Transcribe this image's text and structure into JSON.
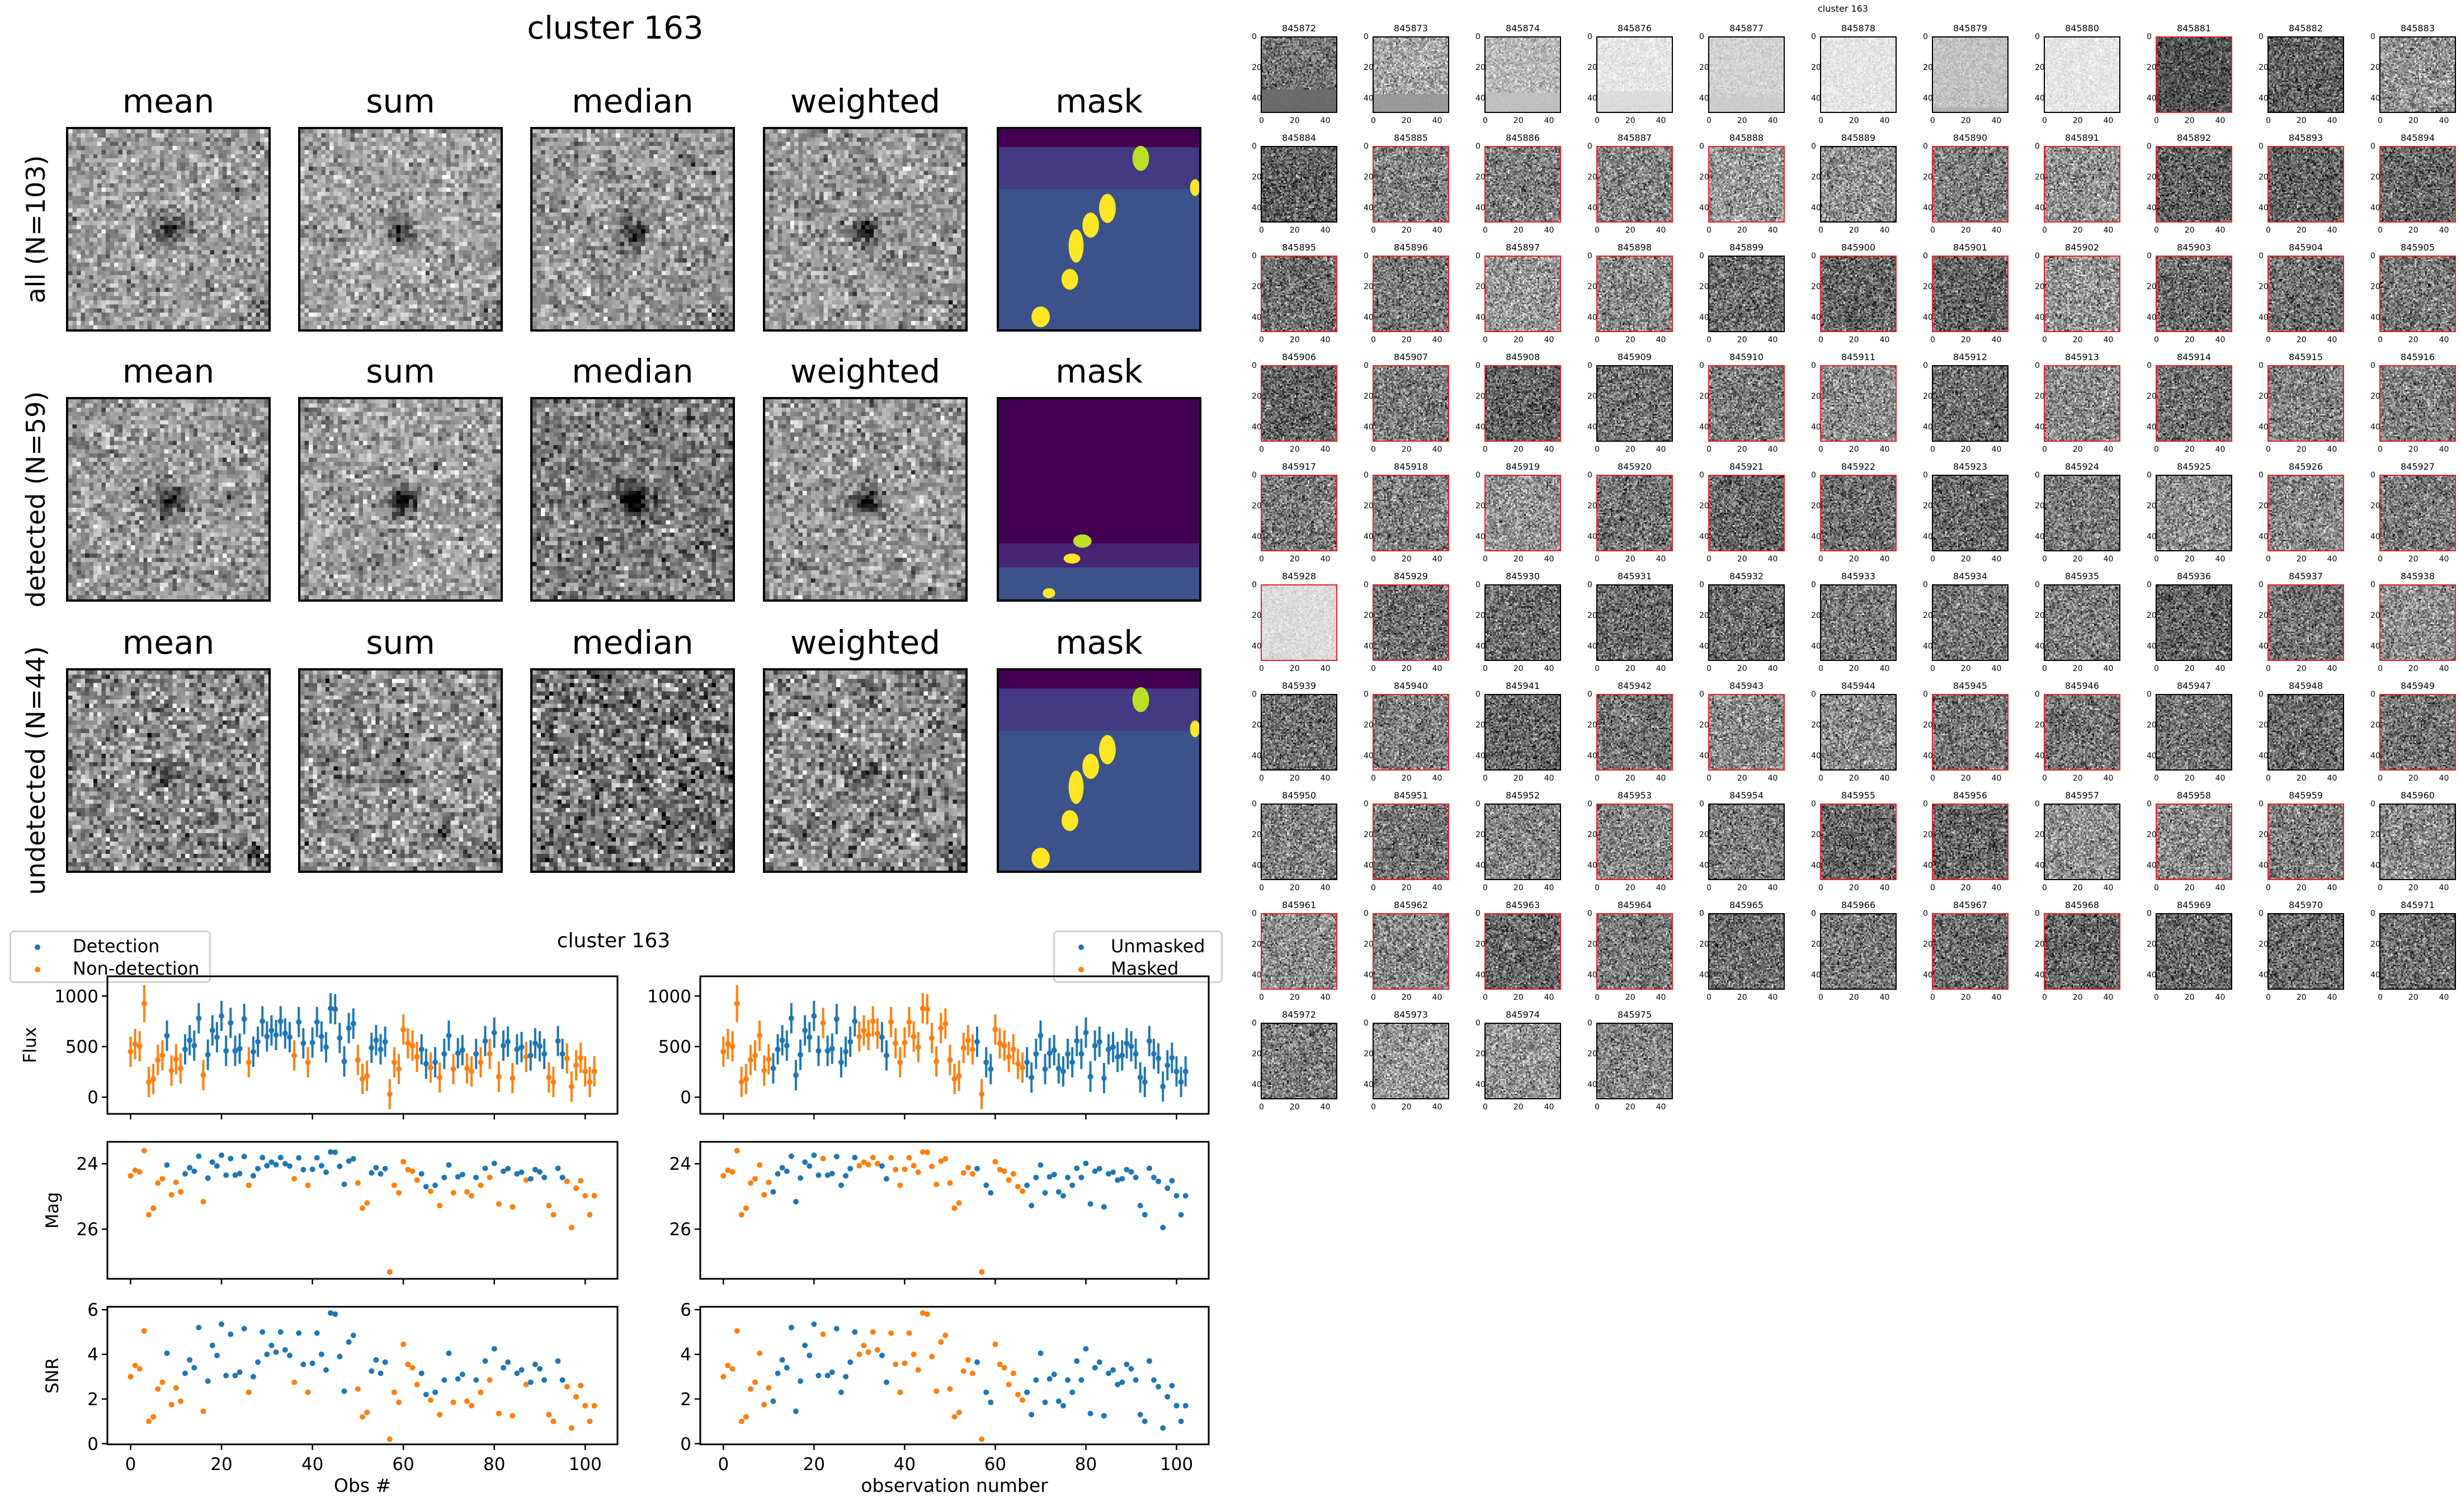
{
  "figure_title": "cluster 163",
  "stack_panels": {
    "columns": [
      "mean",
      "sum",
      "median",
      "weighted",
      "mask"
    ],
    "rows": [
      "all (N=103)",
      "detected (N=59)",
      "undetected (N=44)"
    ]
  },
  "colors": {
    "detection": "#1f77b4",
    "non_detection": "#ff7f0e",
    "detected_border": "#e8202a",
    "viridis_dark": "#440154",
    "viridis_purple": "#443983",
    "viridis_blue": "#3b528b",
    "viridis_yellow": "#fde725",
    "viridis_lime": "#bddf26"
  },
  "thumbnail_grid": {
    "title": "cluster 163",
    "ticks": [
      "0",
      "20",
      "40"
    ],
    "ids": [
      "845872",
      "845873",
      "845874",
      "845876",
      "845877",
      "845878",
      "845879",
      "845880",
      "845881",
      "845882",
      "845883",
      "845884",
      "845885",
      "845886",
      "845887",
      "845888",
      "845889",
      "845890",
      "845891",
      "845892",
      "845893",
      "845894",
      "845895",
      "845896",
      "845897",
      "845898",
      "845899",
      "845900",
      "845901",
      "845902",
      "845903",
      "845904",
      "845905",
      "845906",
      "845907",
      "845908",
      "845909",
      "845910",
      "845911",
      "845912",
      "845913",
      "845914",
      "845915",
      "845916",
      "845917",
      "845918",
      "845919",
      "845920",
      "845921",
      "845922",
      "845923",
      "845924",
      "845925",
      "845926",
      "845927",
      "845928",
      "845929",
      "845930",
      "845931",
      "845932",
      "845933",
      "845934",
      "845935",
      "845936",
      "845937",
      "845938",
      "845939",
      "845940",
      "845941",
      "845942",
      "845943",
      "845944",
      "845945",
      "845946",
      "845947",
      "845948",
      "845949",
      "845950",
      "845951",
      "845952",
      "845953",
      "845954",
      "845955",
      "845956",
      "845957",
      "845958",
      "845959",
      "845960",
      "845961",
      "845962",
      "845963",
      "845964",
      "845965",
      "845966",
      "845967",
      "845968",
      "845969",
      "845970",
      "845971",
      "845972",
      "845973",
      "845974",
      "845975"
    ]
  },
  "chart_data": {
    "type": "scatter",
    "title": "cluster 163",
    "observations": {
      "count": 103,
      "flux": [
        450,
        525,
        503,
        925,
        150,
        180,
        368,
        413,
        608,
        263,
        375,
        285,
        473,
        563,
        510,
        780,
        218,
        420,
        660,
        593,
        803,
        458,
        735,
        458,
        480,
        773,
        345,
        450,
        548,
        750,
        600,
        660,
        615,
        750,
        630,
        593,
        413,
        743,
        533,
        345,
        540,
        743,
        600,
        495,
        878,
        870,
        585,
        353,
        683,
        728,
        368,
        180,
        210,
        488,
        563,
        473,
        548,
        30,
        345,
        278,
        668,
        533,
        510,
        398,
        473,
        330,
        293,
        345,
        195,
        428,
        608,
        278,
        435,
        465,
        285,
        255,
        428,
        345,
        555,
        428,
        638,
        203,
        510,
        548,
        188,
        473,
        495,
        398,
        413,
        533,
        503,
        428,
        195,
        150,
        555,
        428,
        383,
        105,
        315,
        390,
        255,
        150,
        255
      ],
      "flux_err": [
        150,
        150,
        150,
        183,
        150,
        150,
        150,
        150,
        150,
        150,
        150,
        150,
        150,
        150,
        150,
        150,
        150,
        150,
        150,
        150,
        150,
        150,
        150,
        150,
        150,
        150,
        150,
        150,
        150,
        150,
        150,
        150,
        150,
        150,
        150,
        150,
        150,
        150,
        150,
        150,
        150,
        150,
        150,
        150,
        150,
        150,
        150,
        150,
        150,
        150,
        150,
        150,
        150,
        150,
        150,
        150,
        150,
        150,
        150,
        150,
        150,
        150,
        150,
        150,
        150,
        150,
        150,
        150,
        150,
        150,
        150,
        150,
        150,
        150,
        150,
        150,
        150,
        150,
        150,
        150,
        150,
        150,
        150,
        150,
        150,
        150,
        150,
        150,
        150,
        150,
        150,
        150,
        150,
        150,
        150,
        150,
        150,
        150,
        150,
        150,
        150,
        150,
        150
      ],
      "mag": [
        24.37,
        24.2,
        24.25,
        23.6,
        25.56,
        25.36,
        24.59,
        24.46,
        24.04,
        24.95,
        24.57,
        24.86,
        24.31,
        24.12,
        24.23,
        23.77,
        25.16,
        24.44,
        23.95,
        24.07,
        23.74,
        24.35,
        23.84,
        24.35,
        24.3,
        23.78,
        24.66,
        24.37,
        24.15,
        23.81,
        24.06,
        23.95,
        24.03,
        23.81,
        24.0,
        24.07,
        24.46,
        23.82,
        24.18,
        24.66,
        24.17,
        23.82,
        24.06,
        24.26,
        23.64,
        23.65,
        24.08,
        24.63,
        23.92,
        23.85,
        24.59,
        25.36,
        25.2,
        24.28,
        24.12,
        24.31,
        24.15,
        27.31,
        24.66,
        24.89,
        23.94,
        24.18,
        24.23,
        24.5,
        24.31,
        24.7,
        24.84,
        24.66,
        25.28,
        24.42,
        24.04,
        24.89,
        24.4,
        24.33,
        24.86,
        24.98,
        24.42,
        24.66,
        24.14,
        24.42,
        23.99,
        25.23,
        24.23,
        24.15,
        25.32,
        24.31,
        24.26,
        24.5,
        24.46,
        24.18,
        24.25,
        24.42,
        25.28,
        25.56,
        24.14,
        24.42,
        24.54,
        25.95,
        24.75,
        24.52,
        24.98,
        25.56,
        24.98
      ],
      "snr": [
        3.0,
        3.5,
        3.35,
        5.05,
        1.0,
        1.2,
        2.45,
        2.75,
        4.05,
        1.75,
        2.5,
        1.9,
        3.15,
        3.75,
        3.4,
        5.2,
        1.45,
        2.8,
        4.4,
        3.95,
        5.35,
        3.05,
        4.9,
        3.05,
        3.2,
        5.15,
        2.3,
        3.0,
        3.65,
        5.0,
        4.0,
        4.4,
        4.1,
        5.0,
        4.2,
        3.95,
        2.75,
        4.95,
        3.55,
        2.3,
        3.6,
        4.95,
        4.0,
        3.3,
        5.85,
        5.8,
        3.9,
        2.35,
        4.55,
        4.85,
        2.45,
        1.2,
        1.4,
        3.25,
        3.75,
        3.15,
        3.65,
        0.2,
        2.3,
        1.85,
        4.45,
        3.55,
        3.4,
        2.65,
        3.15,
        2.2,
        1.95,
        2.3,
        1.3,
        2.85,
        4.05,
        1.85,
        2.9,
        3.1,
        1.9,
        1.7,
        2.85,
        2.3,
        3.7,
        2.85,
        4.25,
        1.35,
        3.4,
        3.65,
        1.25,
        3.15,
        3.3,
        2.65,
        2.75,
        3.55,
        3.35,
        2.85,
        1.3,
        1.0,
        3.7,
        2.85,
        2.55,
        0.7,
        2.1,
        2.6,
        1.7,
        1.0,
        1.7
      ],
      "detected": [
        8,
        12,
        13,
        14,
        15,
        17,
        18,
        19,
        20,
        21,
        22,
        23,
        24,
        25,
        27,
        28,
        29,
        30,
        31,
        32,
        33,
        34,
        35,
        37,
        38,
        40,
        41,
        42,
        43,
        44,
        45,
        46,
        47,
        48,
        49,
        53,
        54,
        55,
        56,
        64,
        65,
        67,
        69,
        70,
        72,
        73,
        76,
        78,
        80,
        82,
        83,
        85,
        86,
        88,
        89,
        90,
        91,
        94,
        95
      ],
      "masked": [
        0,
        1,
        2,
        3,
        4,
        5,
        6,
        7,
        8,
        9,
        10,
        22,
        30,
        31,
        32,
        33,
        34,
        37,
        38,
        39,
        40,
        41,
        42,
        43,
        44,
        45,
        46,
        47,
        48,
        49,
        50,
        51,
        52,
        53,
        54,
        55,
        57,
        60,
        61,
        62,
        63,
        64,
        65,
        66
      ]
    },
    "xlim": [
      -5.1,
      107.1
    ],
    "xticks": [
      "0",
      "20",
      "40",
      "60",
      "80",
      "100"
    ],
    "panels": [
      {
        "key": "flux",
        "ylabel": "Flux",
        "ylim": [
          -165,
          1195
        ],
        "yticks": [
          "0",
          "500",
          "1000"
        ],
        "errorbars": true
      },
      {
        "key": "mag",
        "ylabel": "Mag",
        "ylim": [
          27.52,
          23.33
        ],
        "yticks": [
          "24",
          "26"
        ],
        "inverted": true
      },
      {
        "key": "snr",
        "ylabel": "SNR",
        "ylim": [
          -0.03,
          6.13
        ],
        "yticks": [
          "0",
          "2",
          "4",
          "6"
        ]
      }
    ],
    "figures": [
      {
        "xlabel": "Obs #",
        "color_by": "detected",
        "legend": {
          "placement": "top-left",
          "entries": [
            "Detection",
            "Non-detection"
          ]
        }
      },
      {
        "xlabel": "observation number",
        "color_by": "masked",
        "legend": {
          "placement": "top-right",
          "entries": [
            "Unmasked",
            "Masked"
          ]
        }
      }
    ]
  }
}
